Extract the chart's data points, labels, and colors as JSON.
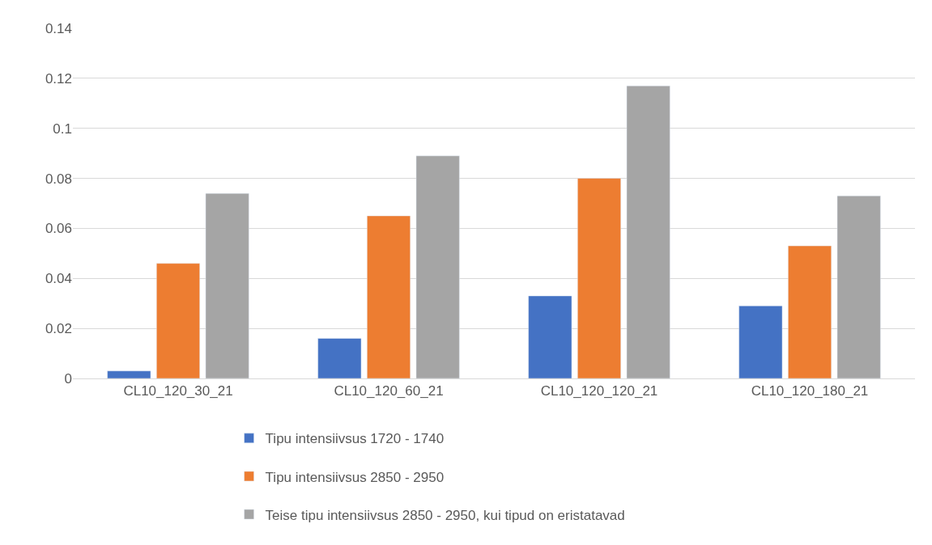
{
  "chart_data": {
    "type": "bar",
    "categories": [
      "CL10_120_30_21",
      "CL10_120_60_21",
      "CL10_120_120_21",
      "CL10_120_180_21"
    ],
    "series": [
      {
        "name": "Tipu intensiivsus 1720 - 1740",
        "color": "#4472c4",
        "values": [
          0.003,
          0.016,
          0.033,
          0.029
        ]
      },
      {
        "name": "Tipu intensiivsus 2850 - 2950",
        "color": "#ed7d31",
        "values": [
          0.046,
          0.065,
          0.08,
          0.053
        ]
      },
      {
        "name": "Teise tipu intensiivsus 2850 - 2950, kui tipud on eristatavad",
        "color": "#a5a5a5",
        "values": [
          0.074,
          0.089,
          0.117,
          0.073
        ]
      }
    ],
    "ylim": [
      0,
      0.14
    ],
    "yticks": [
      0,
      0.02,
      0.04,
      0.06,
      0.08,
      {
        "value": 0.1,
        "label": "0.1"
      },
      0.12,
      0.14
    ],
    "grid": "y",
    "legend": "bottom"
  }
}
